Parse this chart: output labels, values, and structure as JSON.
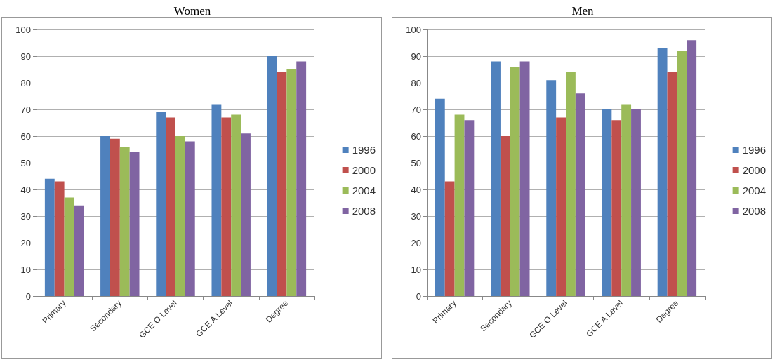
{
  "chart_data": [
    {
      "type": "bar",
      "title": "Women",
      "categories": [
        "Primary",
        "Secondary",
        "GCE O Level",
        "GCE A Level",
        "Degree"
      ],
      "series": [
        {
          "name": "1996",
          "color": "#4f81bd",
          "values": [
            44,
            60,
            69,
            72,
            90
          ]
        },
        {
          "name": "2000",
          "color": "#c0504d",
          "values": [
            43,
            59,
            67,
            67,
            84
          ]
        },
        {
          "name": "2004",
          "color": "#9bbb59",
          "values": [
            37,
            56,
            60,
            68,
            85
          ]
        },
        {
          "name": "2008",
          "color": "#8064a2",
          "values": [
            34,
            54,
            58,
            61,
            88
          ]
        }
      ],
      "ylim": [
        0,
        100
      ],
      "yticks": [
        0,
        10,
        20,
        30,
        40,
        50,
        60,
        70,
        80,
        90,
        100
      ],
      "grid": "y",
      "legend": "right"
    },
    {
      "type": "bar",
      "title": "Men",
      "categories": [
        "Primary",
        "Secondary",
        "GCE O Level",
        "GCE A Level",
        "Degree"
      ],
      "series": [
        {
          "name": "1996",
          "color": "#4f81bd",
          "values": [
            74,
            88,
            81,
            70,
            93
          ]
        },
        {
          "name": "2000",
          "color": "#c0504d",
          "values": [
            43,
            60,
            67,
            66,
            84
          ]
        },
        {
          "name": "2004",
          "color": "#9bbb59",
          "values": [
            68,
            86,
            84,
            72,
            92
          ]
        },
        {
          "name": "2008",
          "color": "#8064a2",
          "values": [
            66,
            88,
            76,
            70,
            96
          ]
        }
      ],
      "ylim": [
        0,
        100
      ],
      "yticks": [
        0,
        10,
        20,
        30,
        40,
        50,
        60,
        70,
        80,
        90,
        100
      ],
      "grid": "y",
      "legend": "right"
    }
  ]
}
